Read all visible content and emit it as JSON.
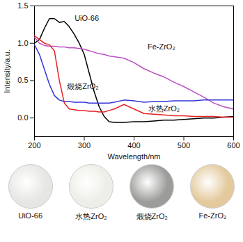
{
  "chart_data": {
    "type": "line",
    "x_label": "Wavelength/nm",
    "y_label": "Intensity/a.u.",
    "xlim": [
      200,
      600
    ],
    "xticks": [
      200,
      300,
      400,
      500,
      600
    ],
    "ylim": [
      -0.25,
      1.5
    ],
    "yticks": [
      {
        "value": 0,
        "label": "0.0"
      },
      0.5,
      {
        "value": 1,
        "label": "1.0"
      },
      1.5
    ],
    "x": [
      200,
      210,
      220,
      230,
      240,
      250,
      260,
      270,
      280,
      290,
      300,
      310,
      320,
      330,
      340,
      350,
      360,
      380,
      400,
      420,
      440,
      460,
      480,
      500,
      520,
      540,
      560,
      580,
      600
    ],
    "series": [
      {
        "name": "UiO-66",
        "color": "#000000",
        "values": [
          1.0,
          1.05,
          1.2,
          1.33,
          1.33,
          1.28,
          1.29,
          1.22,
          1.12,
          1.0,
          0.85,
          0.6,
          0.35,
          0.15,
          0.02,
          -0.05,
          -0.06,
          -0.06,
          -0.05,
          -0.05,
          -0.04,
          -0.03,
          -0.03,
          -0.02,
          -0.01,
          0.0,
          0.0,
          0.01,
          0.02
        ]
      },
      {
        "name": "Fe-ZrO₂",
        "color": "#b94fc4",
        "values": [
          1.08,
          1.0,
          0.97,
          0.96,
          0.96,
          0.95,
          0.95,
          0.94,
          0.94,
          0.93,
          0.92,
          0.9,
          0.88,
          0.86,
          0.85,
          0.83,
          0.82,
          0.8,
          0.74,
          0.66,
          0.6,
          0.55,
          0.48,
          0.42,
          0.35,
          0.28,
          0.2,
          0.15,
          0.12
        ]
      },
      {
        "name": "煅烧ZrO₂",
        "color": "#3434d8",
        "values": [
          0.98,
          0.85,
          0.65,
          0.45,
          0.3,
          0.24,
          0.22,
          0.22,
          0.21,
          0.21,
          0.21,
          0.2,
          0.2,
          0.2,
          0.2,
          0.2,
          0.21,
          0.24,
          0.23,
          0.21,
          0.22,
          0.22,
          0.23,
          0.23,
          0.23,
          0.24,
          0.24,
          0.24,
          0.24
        ]
      },
      {
        "name": "水热ZrO₂",
        "color": "#e52222",
        "values": [
          1.1,
          1.05,
          1.0,
          0.98,
          0.9,
          0.5,
          0.2,
          0.12,
          0.11,
          0.1,
          0.1,
          0.09,
          0.09,
          0.08,
          0.08,
          0.1,
          0.12,
          0.18,
          0.12,
          0.06,
          0.05,
          0.04,
          0.03,
          0.03,
          0.02,
          0.02,
          0.02,
          0.01,
          0.01
        ]
      }
    ],
    "annotations": [
      {
        "text": "UiO-66",
        "x": 305,
        "y": 1.33
      },
      {
        "text": "Fe-ZrO₂",
        "x": 455,
        "y": 0.95
      },
      {
        "text": "煅烧ZrO₂",
        "x": 297,
        "y": 0.42
      },
      {
        "text": "水热ZrO₂",
        "x": 460,
        "y": 0.12
      }
    ],
    "photos": [
      {
        "label": "UiO-66",
        "color": "#e6e6e3"
      },
      {
        "label": "水热ZrO₂",
        "color": "#eeeee8"
      },
      {
        "label": "煅烧ZrO₂",
        "color": "#9c9c9a"
      },
      {
        "label": "Fe-ZrO₂",
        "color": "#e3c99c"
      }
    ]
  }
}
